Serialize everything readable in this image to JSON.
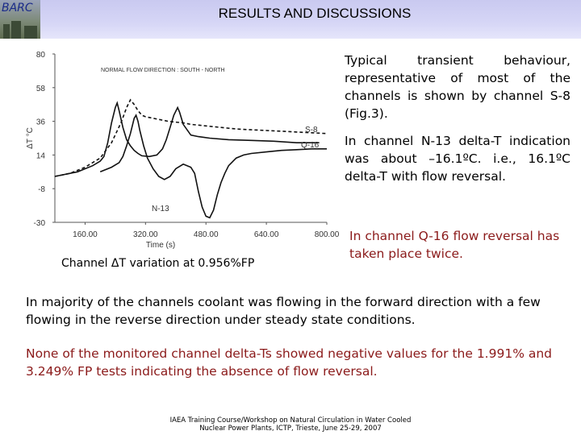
{
  "header": {
    "logo_text": "BARC",
    "title": "RESULTS AND DISCUSSIONS"
  },
  "right_text": {
    "p1": "Typical transient behaviour, representative of most of the channels is shown by channel S-8 (Fig.3).",
    "p2": "In channel N-13 delta-T indication was about –16.1ºC. i.e., 16.1ºC delta-T with flow reversal.",
    "p3": "In channel Q-16 flow reversal has taken place twice."
  },
  "figure": {
    "caption": "Channel ΔT variation at 0.956%FP"
  },
  "body_text": {
    "p4": "In majority of the channels coolant was flowing in the forward direction with a few flowing in the reverse direction under steady state conditions.",
    "p5": "None of the monitored channel delta-Ts showed negative values for the 1.991% and 3.249% FP tests indicating the absence of flow reversal."
  },
  "footer": {
    "line1": "IAEA Training Course/Workshop on Natural Circulation in Water Cooled",
    "line2": "Nuclear Power Plants, ICTP, Trieste, June 25-29, 2007"
  },
  "colors": {
    "header_bg": "#d6d6f6",
    "emphasis_text": "#8b1a1a"
  },
  "chart_data": {
    "type": "line",
    "title": "",
    "annotation": "NORMAL FLOW DIRECTION : SOUTH - NORTH",
    "xlabel": "Time (s)",
    "ylabel": "ΔT °C",
    "xlim": [
      80,
      800
    ],
    "ylim": [
      -30,
      80
    ],
    "xticks": [
      "160.00",
      "320.00",
      "480.00",
      "640.00",
      "800.00"
    ],
    "yticks": [
      "80",
      "58",
      "36",
      "14",
      "-8",
      "-30"
    ],
    "series": [
      {
        "name": "S-8",
        "style": "dashed",
        "points": [
          [
            80,
            0
          ],
          [
            120,
            2
          ],
          [
            160,
            6
          ],
          [
            200,
            12
          ],
          [
            230,
            22
          ],
          [
            255,
            35
          ],
          [
            270,
            45
          ],
          [
            280,
            50
          ],
          [
            290,
            47
          ],
          [
            300,
            43
          ],
          [
            310,
            40
          ],
          [
            320,
            39
          ],
          [
            340,
            38
          ],
          [
            360,
            37
          ],
          [
            380,
            36
          ],
          [
            400,
            35.5
          ],
          [
            420,
            35
          ],
          [
            440,
            34
          ],
          [
            460,
            33.5
          ],
          [
            480,
            33
          ],
          [
            520,
            32
          ],
          [
            560,
            31
          ],
          [
            600,
            30.5
          ],
          [
            640,
            30
          ],
          [
            680,
            29.5
          ],
          [
            720,
            29
          ],
          [
            760,
            28.5
          ],
          [
            800,
            28
          ]
        ]
      },
      {
        "name": "Q-16",
        "style": "solid",
        "points": [
          [
            80,
            0
          ],
          [
            140,
            3
          ],
          [
            180,
            7
          ],
          [
            200,
            10
          ],
          [
            210,
            13
          ],
          [
            220,
            22
          ],
          [
            230,
            35
          ],
          [
            240,
            45
          ],
          [
            245,
            48
          ],
          [
            250,
            43
          ],
          [
            260,
            32
          ],
          [
            270,
            24
          ],
          [
            280,
            20
          ],
          [
            290,
            17
          ],
          [
            300,
            15
          ],
          [
            310,
            13.5
          ],
          [
            330,
            13
          ],
          [
            350,
            14
          ],
          [
            365,
            18
          ],
          [
            375,
            24
          ],
          [
            385,
            32
          ],
          [
            395,
            40
          ],
          [
            405,
            45
          ],
          [
            410,
            42
          ],
          [
            420,
            34
          ],
          [
            440,
            27
          ],
          [
            460,
            26
          ],
          [
            490,
            25
          ],
          [
            540,
            24
          ],
          [
            600,
            23.5
          ],
          [
            660,
            23
          ],
          [
            720,
            22
          ],
          [
            780,
            22
          ]
        ]
      },
      {
        "name": "N-13",
        "style": "solid",
        "points": [
          [
            200,
            3
          ],
          [
            230,
            6
          ],
          [
            250,
            9
          ],
          [
            260,
            13
          ],
          [
            270,
            20
          ],
          [
            280,
            28
          ],
          [
            290,
            38
          ],
          [
            295,
            40
          ],
          [
            300,
            36
          ],
          [
            305,
            30
          ],
          [
            315,
            20
          ],
          [
            325,
            12
          ],
          [
            340,
            5
          ],
          [
            355,
            0
          ],
          [
            370,
            -2
          ],
          [
            385,
            0
          ],
          [
            400,
            5
          ],
          [
            420,
            8
          ],
          [
            440,
            6
          ],
          [
            450,
            2
          ],
          [
            460,
            -10
          ],
          [
            470,
            -20
          ],
          [
            480,
            -26
          ],
          [
            490,
            -27
          ],
          [
            500,
            -22
          ],
          [
            510,
            -12
          ],
          [
            520,
            -4
          ],
          [
            530,
            2
          ],
          [
            540,
            7
          ],
          [
            560,
            12
          ],
          [
            580,
            14
          ],
          [
            600,
            15
          ],
          [
            640,
            16
          ],
          [
            680,
            17
          ],
          [
            720,
            17.5
          ],
          [
            760,
            18
          ],
          [
            800,
            18
          ]
        ]
      }
    ]
  }
}
